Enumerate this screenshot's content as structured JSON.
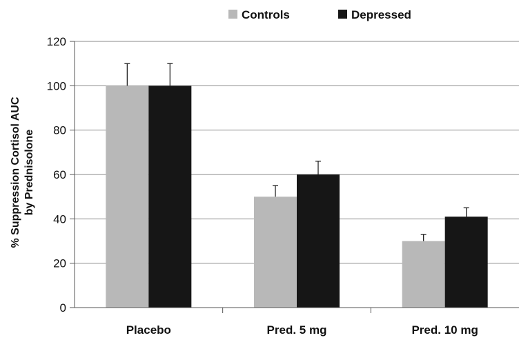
{
  "chart_data": {
    "type": "bar",
    "categories": [
      "Placebo",
      "Pred. 5 mg",
      "Pred. 10 mg"
    ],
    "series": [
      {
        "name": "Controls",
        "values": [
          100,
          50,
          30
        ],
        "errors": [
          10,
          5,
          3
        ],
        "color": "#b8b8b8"
      },
      {
        "name": "Depressed",
        "values": [
          100,
          60,
          41
        ],
        "errors": [
          10,
          6,
          4
        ],
        "color": "#161616"
      }
    ],
    "title": "",
    "xlabel": "",
    "ylabel_lines": [
      "% Suppression Cortisol  AUC",
      "by  Prednisolone"
    ],
    "ylim": [
      0,
      120
    ],
    "yticks": [
      "0",
      "20",
      "40",
      "60",
      "80",
      "100",
      "120"
    ],
    "grid": true,
    "legend_position": "top-center"
  }
}
